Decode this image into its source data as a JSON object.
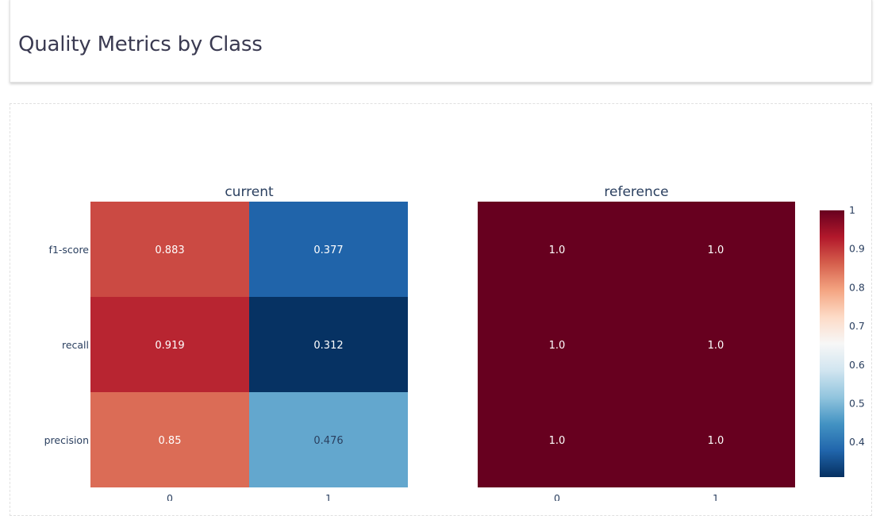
{
  "header": {
    "title": "Quality Metrics by Class"
  },
  "chart_data": {
    "type": "heatmap",
    "y_categories": [
      "f1-score",
      "recall",
      "precision"
    ],
    "x_categories": [
      "0",
      "1"
    ],
    "panels": [
      {
        "name": "current",
        "values": [
          [
            0.883,
            0.377
          ],
          [
            0.919,
            0.312
          ],
          [
            0.85,
            0.476
          ]
        ],
        "labels": [
          [
            "0.883",
            "0.377"
          ],
          [
            "0.919",
            "0.312"
          ],
          [
            "0.85",
            "0.476"
          ]
        ]
      },
      {
        "name": "reference",
        "values": [
          [
            1.0,
            1.0
          ],
          [
            1.0,
            1.0
          ],
          [
            1.0,
            1.0
          ]
        ],
        "labels": [
          [
            "1.0",
            "1.0"
          ],
          [
            "1.0",
            "1.0"
          ],
          [
            "1.0",
            "1.0"
          ]
        ]
      }
    ],
    "colorscale": "RdBu (reversed)",
    "zrange": [
      0.31,
      1.0
    ],
    "colorbar": {
      "ticks": [
        "1",
        "0.9",
        "0.8",
        "0.7",
        "0.6",
        "0.5",
        "0.4"
      ],
      "tick_values": [
        1,
        0.9,
        0.8,
        0.7,
        0.6,
        0.5,
        0.4
      ]
    }
  }
}
